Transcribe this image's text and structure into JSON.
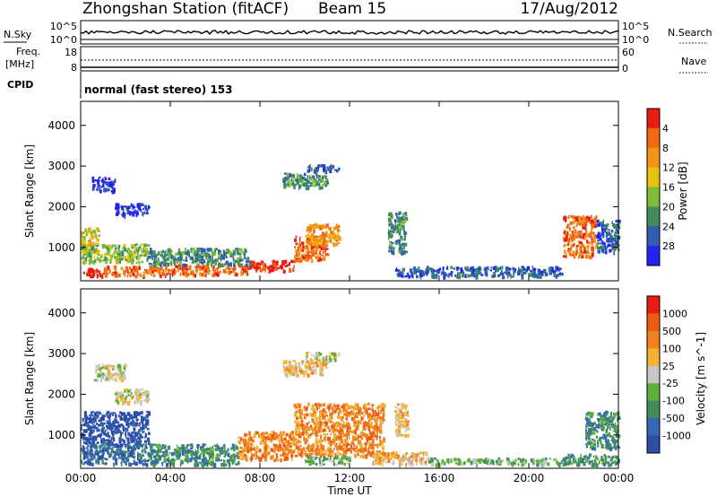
{
  "header": {
    "title": "Zhongshan Station (fitACF)",
    "beam": "Beam 15",
    "date": "17/Aug/2012"
  },
  "status_panels": {
    "nsky_label": "N.Sky",
    "nsky_ticks": [
      "10^5",
      "10^0"
    ],
    "nsearch_label": "N.Search",
    "nsearch_ticks": [
      "10^5",
      "10^0"
    ],
    "freq_label_1": "Freq.",
    "freq_label_2": "[MHz]",
    "freq_ticks": [
      "18",
      "8"
    ],
    "nave_label": "Nave",
    "nave_ticks": [
      "60",
      "0"
    ],
    "cpid_label": "CPID",
    "cpid_text": "normal (fast stereo) 153"
  },
  "chart_data": [
    {
      "type": "heatmap",
      "name": "power",
      "ylabel": "Slant Range [km]",
      "yticks": [
        "1000",
        "2000",
        "3000",
        "4000"
      ],
      "ylim": [
        180,
        4590
      ],
      "xlim_hours": [
        0,
        24
      ],
      "colorbar_label": "Power [dB]",
      "colorbar_ticks": [
        "4",
        "8",
        "12",
        "16",
        "20",
        "24",
        "28"
      ],
      "colorbar_colors": [
        "#2323ef",
        "#2f5db0",
        "#3f8f5e",
        "#7ebd3a",
        "#e8c20f",
        "#f39415",
        "#f26a12",
        "#e81c13"
      ],
      "regions": [
        {
          "x": [
            0.0,
            1.0
          ],
          "y": [
            300,
            500
          ],
          "level": 7
        },
        {
          "x": [
            1.0,
            4.0
          ],
          "y": [
            320,
            560
          ],
          "level": 6
        },
        {
          "x": [
            4.0,
            7.5
          ],
          "y": [
            350,
            600
          ],
          "level": 6
        },
        {
          "x": [
            7.5,
            9.5
          ],
          "y": [
            450,
            700
          ],
          "level": 7
        },
        {
          "x": [
            9.5,
            11.0
          ],
          "y": [
            700,
            1300
          ],
          "level": 6
        },
        {
          "x": [
            10.0,
            11.5
          ],
          "y": [
            1100,
            1600
          ],
          "level": 5
        },
        {
          "x": [
            0.0,
            0.8
          ],
          "y": [
            900,
            1500
          ],
          "level": 4
        },
        {
          "x": [
            0.0,
            3.0
          ],
          "y": [
            650,
            1100
          ],
          "level": 3
        },
        {
          "x": [
            3.0,
            7.5
          ],
          "y": [
            600,
            1000
          ],
          "level": 2
        },
        {
          "x": [
            9.0,
            11.0
          ],
          "y": [
            2500,
            2850
          ],
          "level": 2
        },
        {
          "x": [
            10.0,
            11.5
          ],
          "y": [
            2900,
            3050
          ],
          "level": 1
        },
        {
          "x": [
            13.7,
            14.5
          ],
          "y": [
            900,
            1900
          ],
          "level": 2
        },
        {
          "x": [
            14.0,
            21.5
          ],
          "y": [
            300,
            550
          ],
          "level": 1
        },
        {
          "x": [
            21.5,
            23.0
          ],
          "y": [
            800,
            1800
          ],
          "level": 6
        },
        {
          "x": [
            23.0,
            24.0
          ],
          "y": [
            900,
            1700
          ],
          "level": 1
        },
        {
          "x": [
            0.5,
            1.5
          ],
          "y": [
            2400,
            2750
          ],
          "level": 0
        },
        {
          "x": [
            1.5,
            3.0
          ],
          "y": [
            1800,
            2100
          ],
          "level": 0
        }
      ]
    },
    {
      "type": "heatmap",
      "name": "velocity",
      "ylabel": "Slant Range [km]",
      "yticks": [
        "1000",
        "2000",
        "3000",
        "4000"
      ],
      "ylim": [
        180,
        4590
      ],
      "xlim_hours": [
        0,
        24
      ],
      "xticks": [
        "00:00",
        "04:00",
        "08:00",
        "12:00",
        "16:00",
        "20:00",
        "00:00"
      ],
      "xlabel": "Time UT",
      "colorbar_label": "Velocity [m s^-1]",
      "colorbar_ticks": [
        "1000",
        "500",
        "100",
        "25",
        "-25",
        "-100",
        "-500",
        "-1000"
      ],
      "colorbar_colors": [
        "#2b4ea8",
        "#3767b4",
        "#3f8f5e",
        "#5fb03a",
        "#c6c6c6",
        "#f4b230",
        "#f0831f",
        "#ec5a14",
        "#e81c13"
      ],
      "regions": [
        {
          "x": [
            0.0,
            3.0
          ],
          "y": [
            800,
            1600
          ],
          "level": 0
        },
        {
          "x": [
            0.0,
            3.0
          ],
          "y": [
            300,
            800
          ],
          "level": 1
        },
        {
          "x": [
            3.0,
            7.0
          ],
          "y": [
            300,
            800
          ],
          "level": 2
        },
        {
          "x": [
            7.0,
            9.5
          ],
          "y": [
            400,
            1100
          ],
          "level": 6
        },
        {
          "x": [
            9.5,
            13.5
          ],
          "y": [
            500,
            1800
          ],
          "level": 6
        },
        {
          "x": [
            10.0,
            12.0
          ],
          "y": [
            300,
            500
          ],
          "level": 3
        },
        {
          "x": [
            13.0,
            15.5
          ],
          "y": [
            300,
            600
          ],
          "level": 5
        },
        {
          "x": [
            14.0,
            14.6
          ],
          "y": [
            1000,
            1800
          ],
          "level": 5
        },
        {
          "x": [
            15.5,
            21.5
          ],
          "y": [
            300,
            450
          ],
          "level": 3
        },
        {
          "x": [
            21.5,
            24.0
          ],
          "y": [
            300,
            550
          ],
          "level": 2
        },
        {
          "x": [
            22.5,
            24.0
          ],
          "y": [
            700,
            1600
          ],
          "level": 2
        },
        {
          "x": [
            0.5,
            2.0
          ],
          "y": [
            2350,
            2750
          ],
          "level": 4
        },
        {
          "x": [
            1.5,
            3.0
          ],
          "y": [
            1800,
            2150
          ],
          "level": 4
        },
        {
          "x": [
            9.0,
            11.0
          ],
          "y": [
            2500,
            2850
          ],
          "level": 5
        },
        {
          "x": [
            10.0,
            11.5
          ],
          "y": [
            2850,
            3050
          ],
          "level": 4
        }
      ]
    }
  ]
}
